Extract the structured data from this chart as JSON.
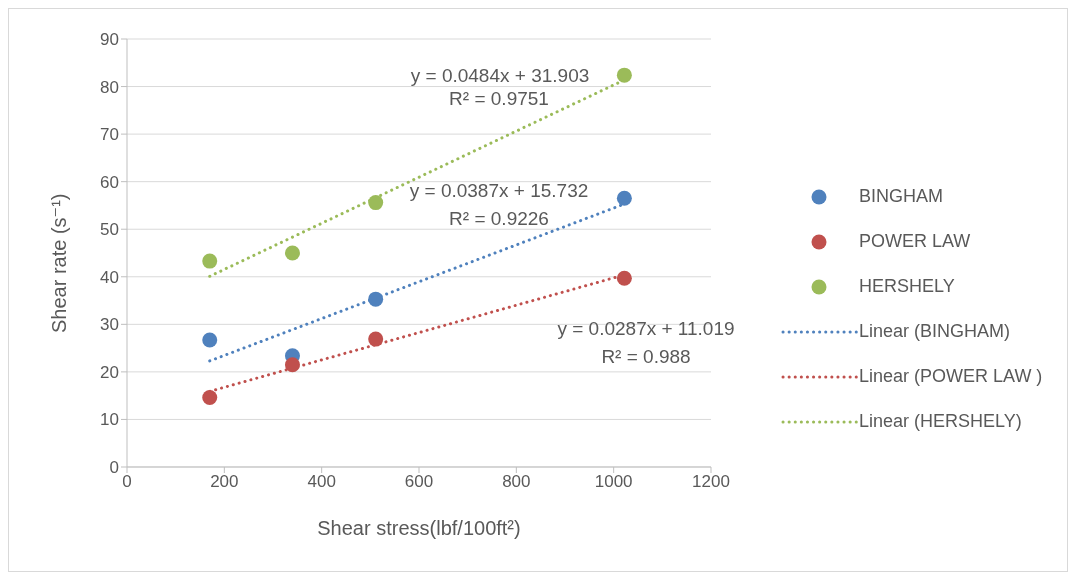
{
  "chart_data": {
    "type": "scatter",
    "xlabel": "Shear stress(lbf/100ft²)",
    "ylabel": "Shear rate (s⁻¹)",
    "xlim": [
      0,
      1200
    ],
    "xticks": [
      0,
      200,
      400,
      600,
      800,
      1000,
      1200
    ],
    "ylim": [
      0,
      90
    ],
    "yticks": [
      0,
      10,
      20,
      30,
      40,
      50,
      60,
      70,
      80,
      90
    ],
    "grid": "y",
    "legend": "right",
    "series": [
      {
        "name": "BINGHAM",
        "marker": "circle",
        "color": "#4f81bd",
        "x": [
          170,
          340,
          511,
          1022
        ],
        "values": [
          26.7,
          23.4,
          35.3,
          56.5
        ]
      },
      {
        "name": "POWER LAW",
        "marker": "circle",
        "color": "#c0504d",
        "x": [
          170,
          340,
          511,
          1022
        ],
        "values": [
          14.6,
          21.5,
          26.9,
          39.7
        ]
      },
      {
        "name": "HERSHELY",
        "marker": "circle",
        "color": "#9bbb59",
        "x": [
          170,
          340,
          511,
          1022
        ],
        "values": [
          43.3,
          45.0,
          55.6,
          82.4
        ]
      },
      {
        "name": "Linear (BINGHAM)",
        "type": "line",
        "marker": "none",
        "line_style": "dotted",
        "color": "#4f81bd",
        "x": [
          170,
          1022
        ],
        "values": [
          22.3,
          55.3
        ]
      },
      {
        "name": "Linear (POWER LAW )",
        "type": "line",
        "marker": "none",
        "line_style": "dotted",
        "color": "#c0504d",
        "x": [
          170,
          1022
        ],
        "values": [
          15.9,
          40.4
        ]
      },
      {
        "name": "Linear (HERSHELY)",
        "type": "line",
        "marker": "none",
        "line_style": "dotted",
        "color": "#9bbb59",
        "x": [
          170,
          1022
        ],
        "values": [
          40.1,
          81.4
        ]
      }
    ],
    "annotations": [
      "y = 0.0484x + 31.903",
      "R² = 0.9751",
      "y = 0.0387x + 15.732",
      "R² = 0.9226",
      "y = 0.0287x + 11.019",
      "R² = 0.988"
    ]
  }
}
